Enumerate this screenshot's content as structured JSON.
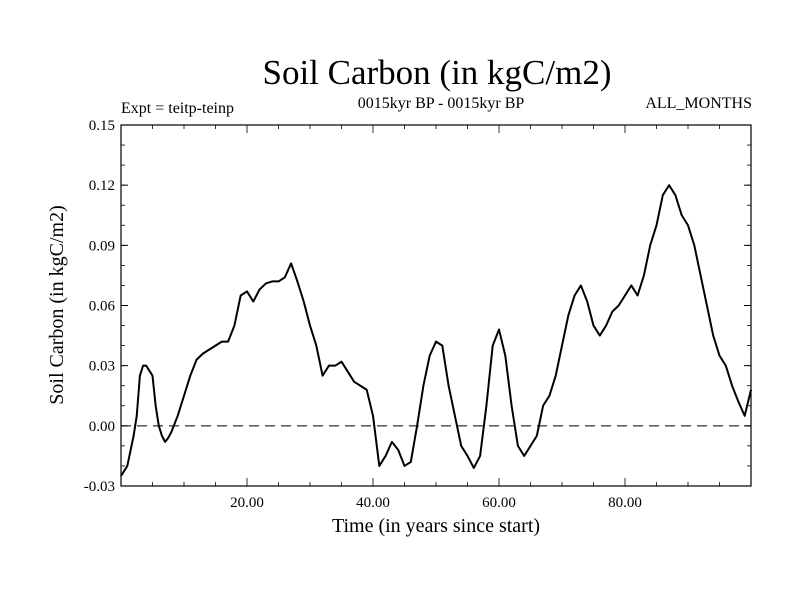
{
  "chart_data": {
    "type": "line",
    "title": "Soil Carbon (in kgC/m2)",
    "subtitle": "0015kyr BP - 0015kyr BP",
    "experiment": "Expt = teitp-teinp",
    "period": "ALL_MONTHS",
    "xlabel": "Time (in years since start)",
    "ylabel": "Soil Carbon (in kgC/m2)",
    "xlim": [
      0,
      100
    ],
    "ylim": [
      -0.03,
      0.15
    ],
    "xticks": [
      {
        "value": 20,
        "label": "20.00"
      },
      {
        "value": 40,
        "label": "40.00"
      },
      {
        "value": 60,
        "label": "60.00"
      },
      {
        "value": 80,
        "label": "80.00"
      }
    ],
    "yticks": [
      {
        "value": -0.03,
        "label": "-0.03"
      },
      {
        "value": 0.0,
        "label": "0.00"
      },
      {
        "value": 0.03,
        "label": "0.03"
      },
      {
        "value": 0.06,
        "label": "0.06"
      },
      {
        "value": 0.09,
        "label": "0.09"
      },
      {
        "value": 0.12,
        "label": "0.12"
      },
      {
        "value": 0.15,
        "label": "0.15"
      }
    ],
    "reference_line": {
      "value": 0.0,
      "style": "dashed"
    },
    "series": [
      {
        "name": "Soil Carbon",
        "x": [
          0,
          1,
          2,
          2.5,
          3,
          3.5,
          4,
          5,
          5.5,
          6,
          6.5,
          7,
          7.5,
          8,
          9,
          10,
          11,
          12,
          13,
          14,
          15,
          16,
          17,
          18,
          19,
          20,
          21,
          22,
          23,
          24,
          25,
          26,
          27,
          28,
          29,
          30,
          31,
          32,
          33,
          34,
          35,
          36,
          37,
          38,
          39,
          40,
          41,
          42,
          43,
          44,
          45,
          46,
          47,
          48,
          49,
          50,
          51,
          52,
          53,
          54,
          55,
          56,
          57,
          58,
          59,
          60,
          61,
          62,
          63,
          64,
          65,
          66,
          67,
          68,
          69,
          70,
          71,
          72,
          73,
          74,
          75,
          76,
          77,
          78,
          79,
          80,
          81,
          82,
          83,
          84,
          85,
          86,
          87,
          88,
          89,
          90,
          91,
          92,
          93,
          94,
          95,
          96,
          97,
          98,
          99,
          100
        ],
        "values": [
          -0.025,
          -0.02,
          -0.005,
          0.005,
          0.025,
          0.03,
          0.03,
          0.025,
          0.01,
          0.0,
          -0.005,
          -0.008,
          -0.006,
          -0.003,
          0.005,
          0.015,
          0.025,
          0.033,
          0.036,
          0.038,
          0.04,
          0.042,
          0.042,
          0.05,
          0.065,
          0.067,
          0.062,
          0.068,
          0.071,
          0.072,
          0.072,
          0.074,
          0.081,
          0.072,
          0.062,
          0.05,
          0.04,
          0.025,
          0.03,
          0.03,
          0.032,
          0.027,
          0.022,
          0.02,
          0.018,
          0.005,
          -0.02,
          -0.015,
          -0.008,
          -0.012,
          -0.02,
          -0.018,
          0.0,
          0.02,
          0.035,
          0.042,
          0.04,
          0.02,
          0.005,
          -0.01,
          -0.015,
          -0.021,
          -0.015,
          0.01,
          0.04,
          0.048,
          0.035,
          0.01,
          -0.01,
          -0.015,
          -0.01,
          -0.005,
          0.01,
          0.015,
          0.025,
          0.04,
          0.055,
          0.065,
          0.07,
          0.062,
          0.05,
          0.045,
          0.05,
          0.057,
          0.06,
          0.065,
          0.07,
          0.065,
          0.075,
          0.09,
          0.1,
          0.115,
          0.12,
          0.115,
          0.105,
          0.1,
          0.09,
          0.075,
          0.06,
          0.045,
          0.035,
          0.03,
          0.02,
          0.012,
          0.005,
          0.018
        ]
      }
    ]
  }
}
